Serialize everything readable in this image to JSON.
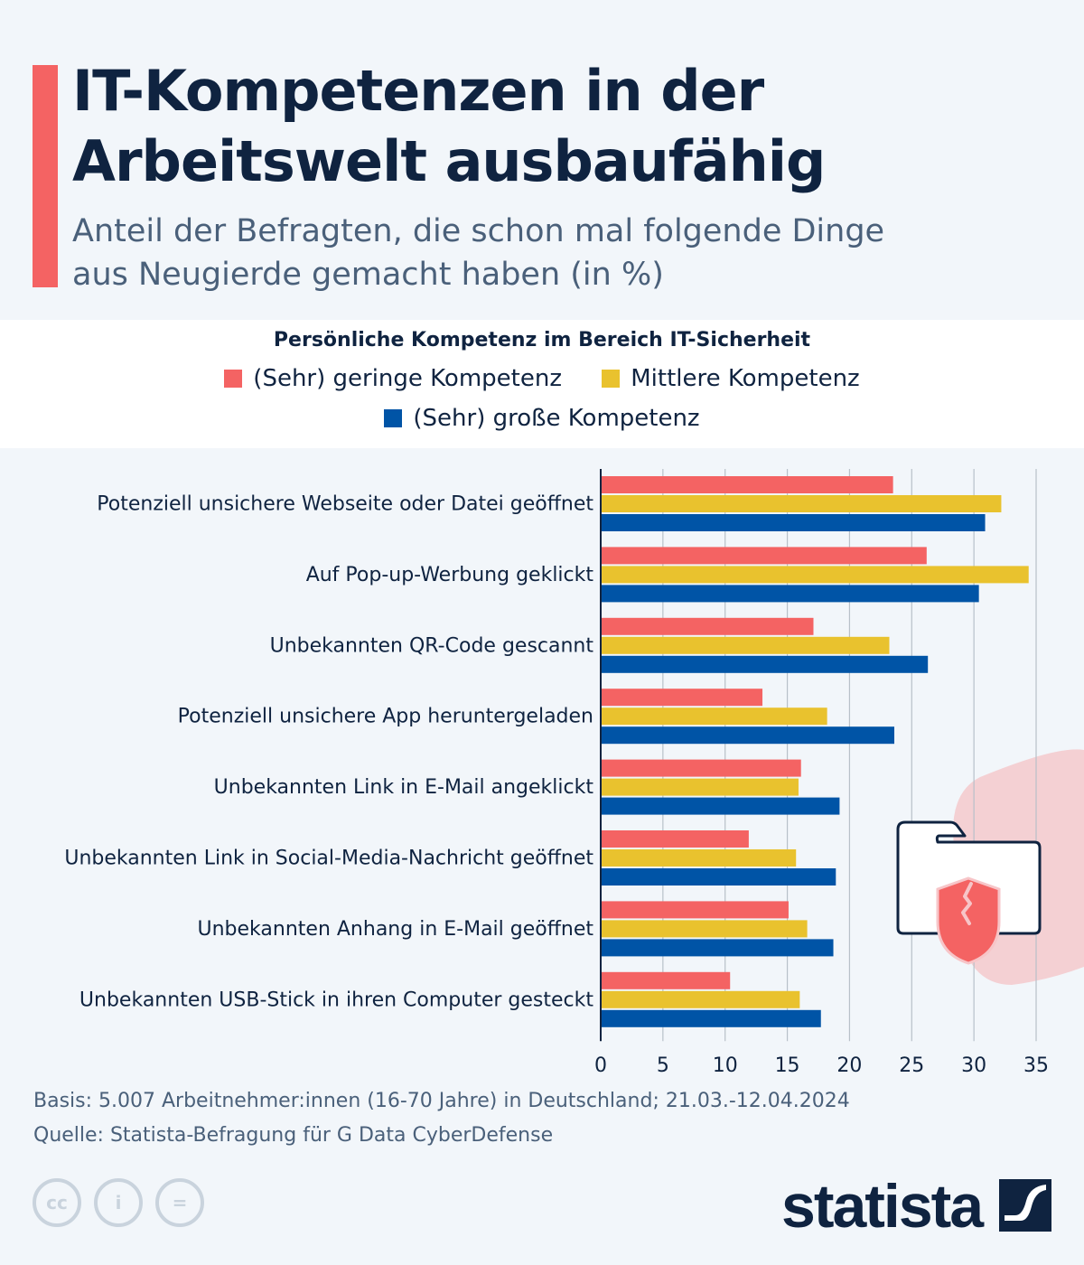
{
  "header": {
    "title_line1": "IT-Kompetenzen in der",
    "title_line2": "Arbeitswelt ausbaufähig",
    "subtitle_line1": "Anteil der Befragten, die schon mal folgende Dinge",
    "subtitle_line2": "aus Neugierde gemacht haben (in %)"
  },
  "legend": {
    "title": "Persönliche Kompetenz im Bereich IT-Sicherheit",
    "items": [
      {
        "label": "(Sehr) geringe Kompetenz",
        "color": "#f46363"
      },
      {
        "label": "Mittlere Kompetenz",
        "color": "#e9c22e"
      },
      {
        "label": "(Sehr) große Kompetenz",
        "color": "#0054a6"
      }
    ]
  },
  "chart_data": {
    "type": "bar",
    "orientation": "horizontal",
    "title": "IT-Kompetenzen in der Arbeitswelt ausbaufähig",
    "subtitle": "Anteil der Befragten, die schon mal folgende Dinge aus Neugierde gemacht haben (in %)",
    "xlabel": "",
    "ylabel": "",
    "xlim": [
      0,
      35
    ],
    "xticks": [
      0,
      5,
      10,
      15,
      20,
      25,
      30,
      35
    ],
    "grid": true,
    "legend_position": "top-center",
    "categories": [
      "Potenziell unsichere Webseite oder Datei geöffnet",
      "Auf Pop-up-Werbung geklickt",
      "Unbekannten QR-Code gescannt",
      "Potenziell unsichere App heruntergeladen",
      "Unbekannten Link in E-Mail angeklickt",
      "Unbekannten Link in Social-Media-Nachricht geöffnet",
      "Unbekannten Anhang in E-Mail geöffnet",
      "Unbekannten USB-Stick in ihren Computer gesteckt"
    ],
    "series": [
      {
        "name": "(Sehr) geringe Kompetenz",
        "color": "#f46363",
        "values": [
          23.5,
          26.2,
          17.1,
          13.0,
          16.1,
          11.9,
          15.1,
          10.4
        ]
      },
      {
        "name": "Mittlere Kompetenz",
        "color": "#e9c22e",
        "values": [
          32.2,
          34.4,
          23.2,
          18.2,
          15.9,
          15.7,
          16.6,
          16.0
        ]
      },
      {
        "name": "(Sehr) große Kompetenz",
        "color": "#0054a6",
        "values": [
          30.9,
          30.4,
          26.3,
          23.6,
          19.2,
          18.9,
          18.7,
          17.7
        ]
      }
    ]
  },
  "footer": {
    "basis": "Basis: 5.007 Arbeitnehmer:innen (16-70 Jahre) in Deutschland; 21.03.-12.04.2024",
    "source": "Quelle: Statista-Befragung für G Data CyberDefense"
  },
  "license_icons": [
    "cc-icon",
    "attribution-icon",
    "no-derivatives-icon"
  ],
  "brand": {
    "name": "statista"
  }
}
